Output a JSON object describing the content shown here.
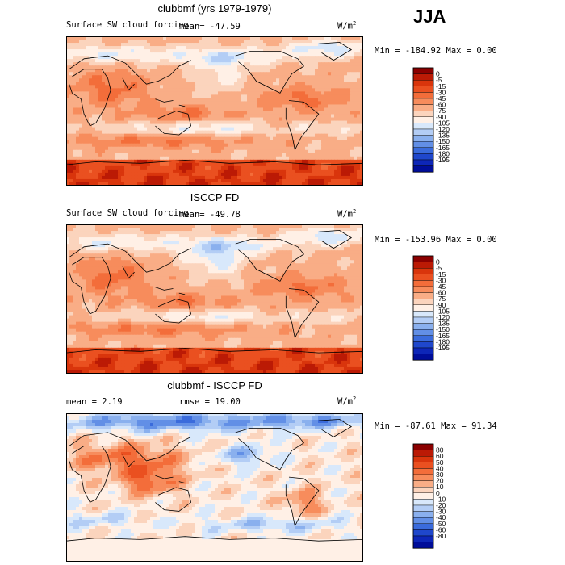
{
  "season": "JJA",
  "colors": {
    "control": [
      "#8b0000",
      "#bb1a05",
      "#d9350c",
      "#ea5020",
      "#f36d3a",
      "#f78c5c",
      "#f9ad86",
      "#fbd4bd",
      "#fff0e6",
      "#d8e8fb",
      "#b3cdf5",
      "#8ab0ee",
      "#628fe6",
      "#3a6bdc",
      "#1f47cc",
      "#0d26b8",
      "#000d99"
    ],
    "diff": [
      "#8b0000",
      "#bb1a05",
      "#d9350c",
      "#ea5020",
      "#f36d3a",
      "#f78c5c",
      "#f9ad86",
      "#fbd4bd",
      "#fff0e6",
      "#d8e8fb",
      "#b3cdf5",
      "#8ab0ee",
      "#628fe6",
      "#3a6bdc",
      "#1f47cc",
      "#0d26b8",
      "#000d99"
    ],
    "coast": "#000000"
  },
  "chart_data": [
    {
      "type": "heatmap",
      "title": "clubbmf (yrs 1979-1979)",
      "variable": "Surface SW cloud forcing",
      "mean_text": "mean=  -47.59",
      "units": "W/m",
      "units_sup": "2",
      "min_max": "Min = -184.92 Max =   0.00",
      "colorbar_labels": [
        "0",
        "-5",
        "-15",
        "-30",
        "-45",
        "-60",
        "-75",
        "-90",
        "-105",
        "-120",
        "-135",
        "-150",
        "-165",
        "-180",
        "-195"
      ]
    },
    {
      "type": "heatmap",
      "title": "ISCCP FD",
      "variable": "Surface SW cloud forcing",
      "mean_text": "mean=  -49.78",
      "units": "W/m",
      "units_sup": "2",
      "min_max": "Min = -153.96 Max =   0.00",
      "colorbar_labels": [
        "0",
        "-5",
        "-15",
        "-30",
        "-45",
        "-60",
        "-75",
        "-90",
        "-105",
        "-120",
        "-135",
        "-150",
        "-165",
        "-180",
        "-195"
      ]
    },
    {
      "type": "heatmap",
      "title": "clubbmf - ISCCP FD",
      "mean_text": "mean =   2.19",
      "rmse_text": "rmse =  19.00",
      "units": "W/m",
      "units_sup": "2",
      "min_max": "Min = -87.61 Max =  91.34",
      "colorbar_labels": [
        "80",
        "60",
        "50",
        "40",
        "30",
        "20",
        "10",
        "0",
        "-10",
        "-20",
        "-30",
        "-40",
        "-50",
        "-60",
        "-80"
      ]
    }
  ]
}
